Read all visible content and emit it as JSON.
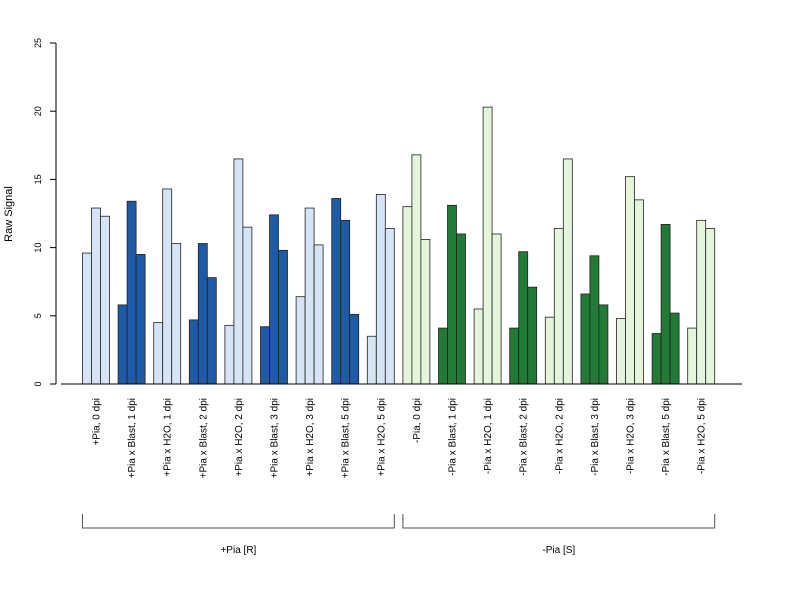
{
  "chart_data": {
    "type": "bar",
    "ylabel": "Raw Signal",
    "ylim": [
      0,
      25
    ],
    "yticks": [
      0,
      5,
      10,
      15,
      20,
      25
    ],
    "bars_per_group": 3,
    "colors": {
      "blue_light": "#D6E4F5",
      "blue_dark": "#1F5AA6",
      "green_light": "#E4F5DC",
      "green_dark": "#217A36"
    },
    "categories": [
      "+Pia, 0 dpi",
      "+Pia x Blast, 1 dpi",
      "+Pia x H2O, 1 dpi",
      "+Pia x Blast, 2 dpi",
      "+Pia x H2O, 2 dpi",
      "+Pia x Blast, 3 dpi",
      "+Pia x H2O, 3 dpi",
      "+Pia x Blast, 5 dpi",
      "+Pia x H2O, 5 dpi",
      "-Pia, 0 dpi",
      "-Pia x Blast, 1 dpi",
      "-Pia x H2O, 1 dpi",
      "-Pia x Blast, 2 dpi",
      "-Pia x H2O, 2 dpi",
      "-Pia x Blast, 3 dpi",
      "-Pia x H2O, 3 dpi",
      "-Pia x Blast, 5 dpi",
      "-Pia x H2O, 5 dpi"
    ],
    "category_colors": [
      "blue_light",
      "blue_dark",
      "blue_light",
      "blue_dark",
      "blue_light",
      "blue_dark",
      "blue_light",
      "blue_dark",
      "blue_light",
      "green_light",
      "green_dark",
      "green_light",
      "green_dark",
      "green_light",
      "green_dark",
      "green_light",
      "green_dark",
      "green_light"
    ],
    "values": [
      [
        9.6,
        12.9,
        12.3
      ],
      [
        5.8,
        13.4,
        9.5
      ],
      [
        4.5,
        14.3,
        10.3
      ],
      [
        4.7,
        10.3,
        7.8
      ],
      [
        4.3,
        16.5,
        11.5
      ],
      [
        4.2,
        12.4,
        9.8
      ],
      [
        6.4,
        12.9,
        10.2
      ],
      [
        13.6,
        12.0,
        5.1
      ],
      [
        3.5,
        13.9,
        11.4
      ],
      [
        13.0,
        16.8,
        10.6
      ],
      [
        4.1,
        13.1,
        11.0
      ],
      [
        5.5,
        20.3,
        11.0
      ],
      [
        4.1,
        9.7,
        7.1
      ],
      [
        4.9,
        11.4,
        16.5
      ],
      [
        6.6,
        9.4,
        5.8
      ],
      [
        4.8,
        15.2,
        13.5
      ],
      [
        3.7,
        11.7,
        5.2
      ],
      [
        4.1,
        12.0,
        11.4
      ]
    ],
    "groups": [
      {
        "label": "+Pia [R]",
        "start": 0,
        "end": 8
      },
      {
        "label": "-Pia [S]",
        "start": 9,
        "end": 17
      }
    ]
  }
}
